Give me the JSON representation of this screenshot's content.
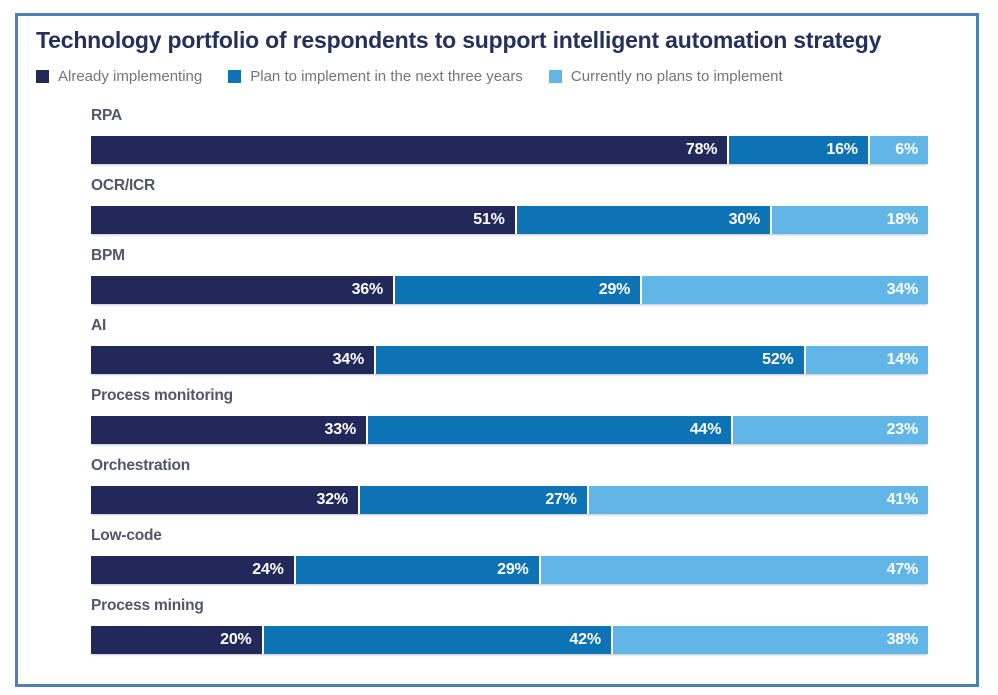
{
  "chart_data": {
    "type": "bar",
    "stacked": true,
    "orientation": "horizontal",
    "title": "Technology portfolio of respondents to support intelligent automation strategy",
    "categories": [
      "RPA",
      "OCR/ICR",
      "BPM",
      "AI",
      "Process monitoring",
      "Orchestration",
      "Low-code",
      "Process mining"
    ],
    "series": [
      {
        "name": "Already implementing",
        "color": "#23285A",
        "values": [
          78,
          51,
          36,
          34,
          33,
          32,
          24,
          20
        ]
      },
      {
        "name": "Plan to implement in the next three years",
        "color": "#0D73B5",
        "values": [
          16,
          30,
          29,
          52,
          44,
          27,
          29,
          42
        ]
      },
      {
        "name": "Currently no plans to implement",
        "color": "#62B6E7",
        "values": [
          6,
          18,
          34,
          14,
          23,
          41,
          47,
          38
        ]
      }
    ],
    "value_suffix": "%",
    "value_labels": "inside-right",
    "legend_position": "top",
    "xlim": [
      0,
      100
    ],
    "grid": false,
    "axes_visible": false
  },
  "colors": {
    "frame_border": "#4E80B8",
    "title_text": "#25315B",
    "category_label_text": "#515669",
    "legend_text": "#74747C",
    "value_label_text": "#FFFFFF",
    "background": "#FFFFFF"
  }
}
